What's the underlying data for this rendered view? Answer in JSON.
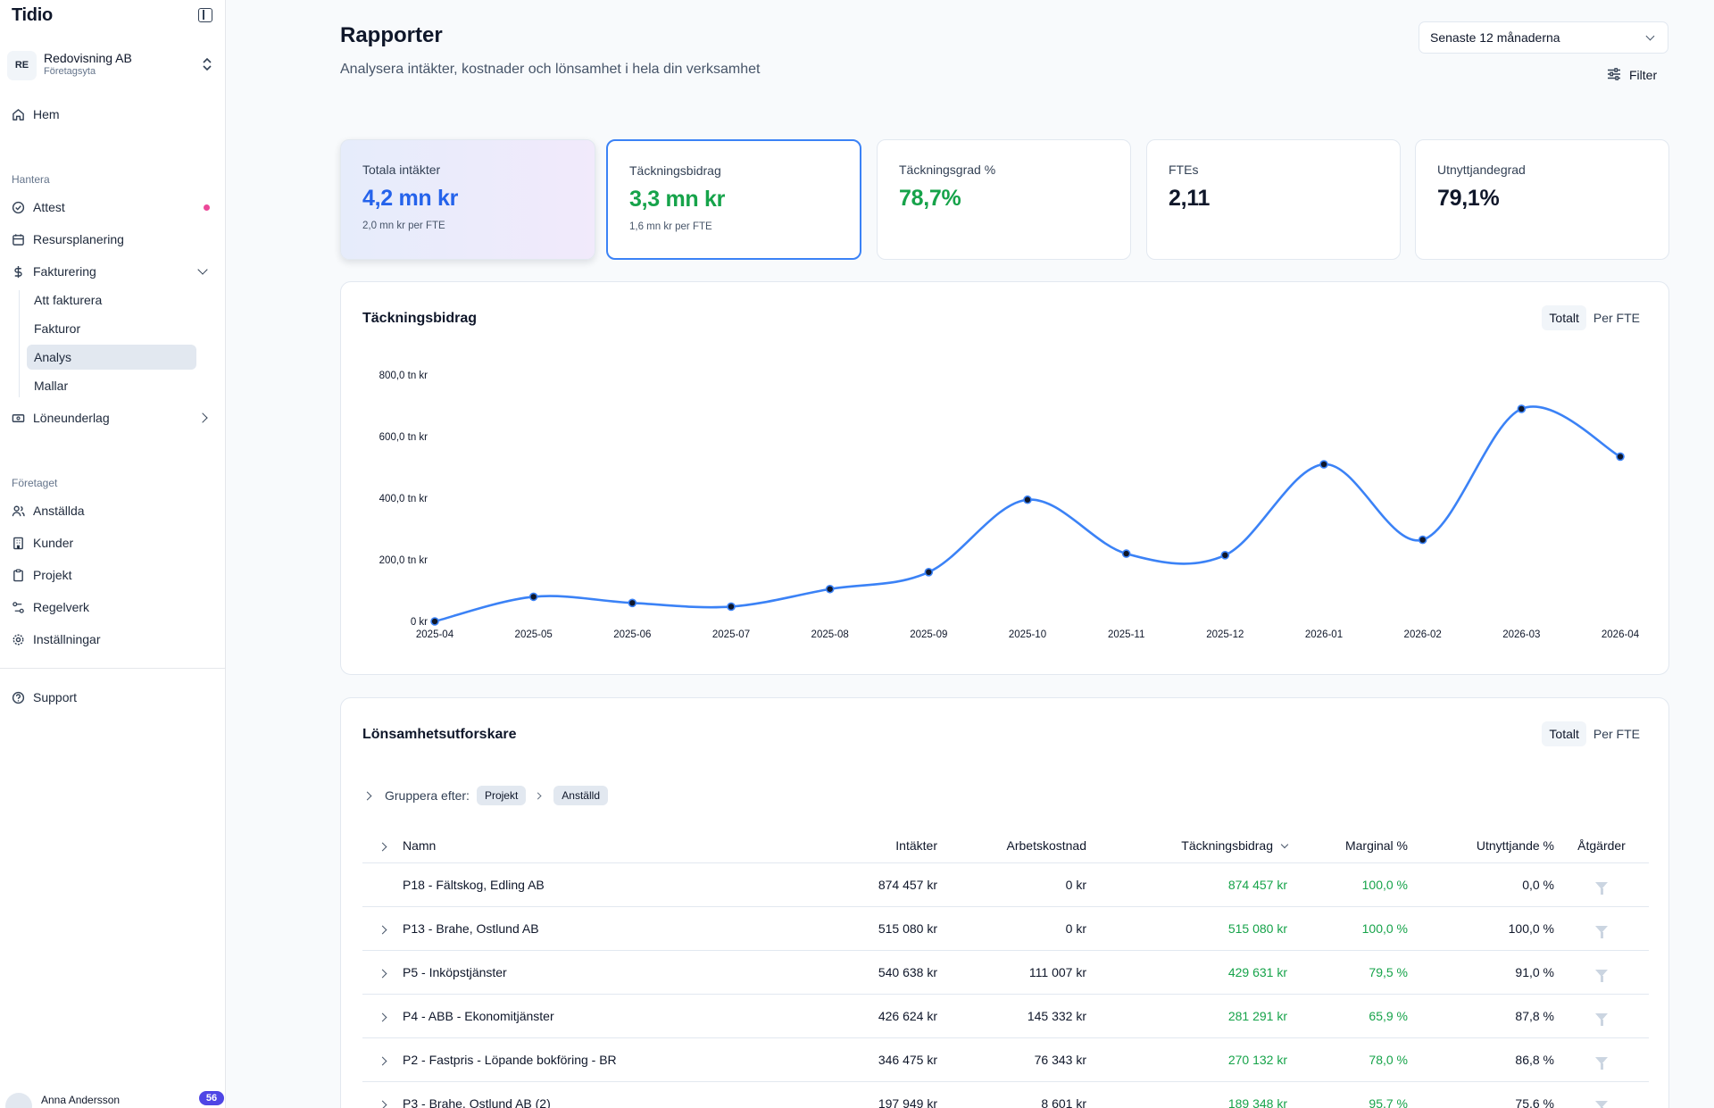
{
  "sidebar": {
    "logo": "Tidio",
    "org": {
      "initials": "RE",
      "name": "Redovisning AB",
      "type": "Företagsyta"
    },
    "home": "Hem",
    "section_manage": "Hantera",
    "attest": "Attest",
    "resource": "Resursplanering",
    "billing": "Fakturering",
    "billing_items": [
      "Att fakturera",
      "Fakturor",
      "Analys",
      "Mallar"
    ],
    "payroll": "Löneunderlag",
    "section_company": "Företaget",
    "employees": "Anställda",
    "customers": "Kunder",
    "projects": "Projekt",
    "rules": "Regelverk",
    "settings": "Inställningar",
    "support": "Support",
    "user": {
      "name": "Anna Andersson",
      "badge": "56"
    }
  },
  "header": {
    "title": "Rapporter",
    "subtitle": "Analysera intäkter, kostnader och lönsamhet i hela din verksamhet",
    "period": "Senaste 12 månaderna",
    "filter": "Filter"
  },
  "kpis": [
    {
      "label": "Totala intäkter",
      "value": "4,2 mn kr",
      "sub": "2,0 mn kr per FTE",
      "color": "#2563eb"
    },
    {
      "label": "Täckningsbidrag",
      "value": "3,3 mn kr",
      "sub": "1,6 mn kr per FTE",
      "color": "#16a34a"
    },
    {
      "label": "Täckningsgrad %",
      "value": "78,7%",
      "sub": "",
      "color": "#16a34a"
    },
    {
      "label": "FTEs",
      "value": "2,11",
      "sub": "",
      "color": "#0f172a"
    },
    {
      "label": "Utnyttjandegrad",
      "value": "79,1%",
      "sub": "",
      "color": "#0f172a"
    }
  ],
  "chart_card": {
    "title": "Täckningsbidrag",
    "seg_total": "Totalt",
    "seg_fte": "Per FTE"
  },
  "chart_data": {
    "type": "line",
    "title": "Täckningsbidrag",
    "x": [
      "2025-04",
      "2025-05",
      "2025-06",
      "2025-07",
      "2025-08",
      "2025-09",
      "2025-10",
      "2025-11",
      "2025-12",
      "2026-01",
      "2026-02",
      "2026-03",
      "2026-04"
    ],
    "values": [
      0,
      80,
      60,
      48,
      105,
      160,
      395,
      220,
      215,
      510,
      265,
      690,
      535
    ],
    "unit": "tn kr",
    "ylim": [
      0,
      800
    ],
    "yticks": [
      0,
      200,
      400,
      600,
      800
    ],
    "ytick_labels": [
      "0 kr",
      "200,0 tn kr",
      "400,0 tn kr",
      "600,0 tn kr",
      "800,0 tn kr"
    ],
    "line_color": "#3b82f6",
    "point_color": "#0f172a",
    "grid": false,
    "legend": "none"
  },
  "table_card": {
    "title": "Lönsamhetsutforskare",
    "seg_total": "Totalt",
    "seg_fte": "Per FTE",
    "group_label": "Gruppera efter:",
    "group_chips": [
      "Projekt",
      "Anställd"
    ],
    "columns": [
      "Namn",
      "Intäkter",
      "Arbetskostnad",
      "Täckningsbidrag",
      "Marginal %",
      "Utnyttjande %",
      "Åtgärder"
    ],
    "rows": [
      {
        "name": "P18 -  Fältskog, Edling AB",
        "revenue": "874 457 kr",
        "labor": "0 kr",
        "contribution": "874 457 kr",
        "margin": "100,0 %",
        "utilization": "0,0 %",
        "expandable": false
      },
      {
        "name": "P13 -  Brahe, Ostlund AB",
        "revenue": "515 080 kr",
        "labor": "0 kr",
        "contribution": "515 080 kr",
        "margin": "100,0 %",
        "utilization": "100,0 %",
        "expandable": true
      },
      {
        "name": "P5 -  Inköpstjänster",
        "revenue": "540 638 kr",
        "labor": "111 007 kr",
        "contribution": "429 631 kr",
        "margin": "79,5 %",
        "utilization": "91,0 %",
        "expandable": true
      },
      {
        "name": "P4 -  ABB - Ekonomitjänster",
        "revenue": "426 624 kr",
        "labor": "145 332 kr",
        "contribution": "281 291 kr",
        "margin": "65,9 %",
        "utilization": "87,8 %",
        "expandable": true
      },
      {
        "name": "P2 -  Fastpris - Löpande bokföring - BR",
        "revenue": "346 475 kr",
        "labor": "76 343 kr",
        "contribution": "270 132 kr",
        "margin": "78,0 %",
        "utilization": "86,8 %",
        "expandable": true
      },
      {
        "name": "P3 -  Brahe, Ostlund AB (2)",
        "revenue": "197 949 kr",
        "labor": "8 601 kr",
        "contribution": "189 348 kr",
        "margin": "95,7 %",
        "utilization": "75,6 %",
        "expandable": true
      }
    ]
  }
}
